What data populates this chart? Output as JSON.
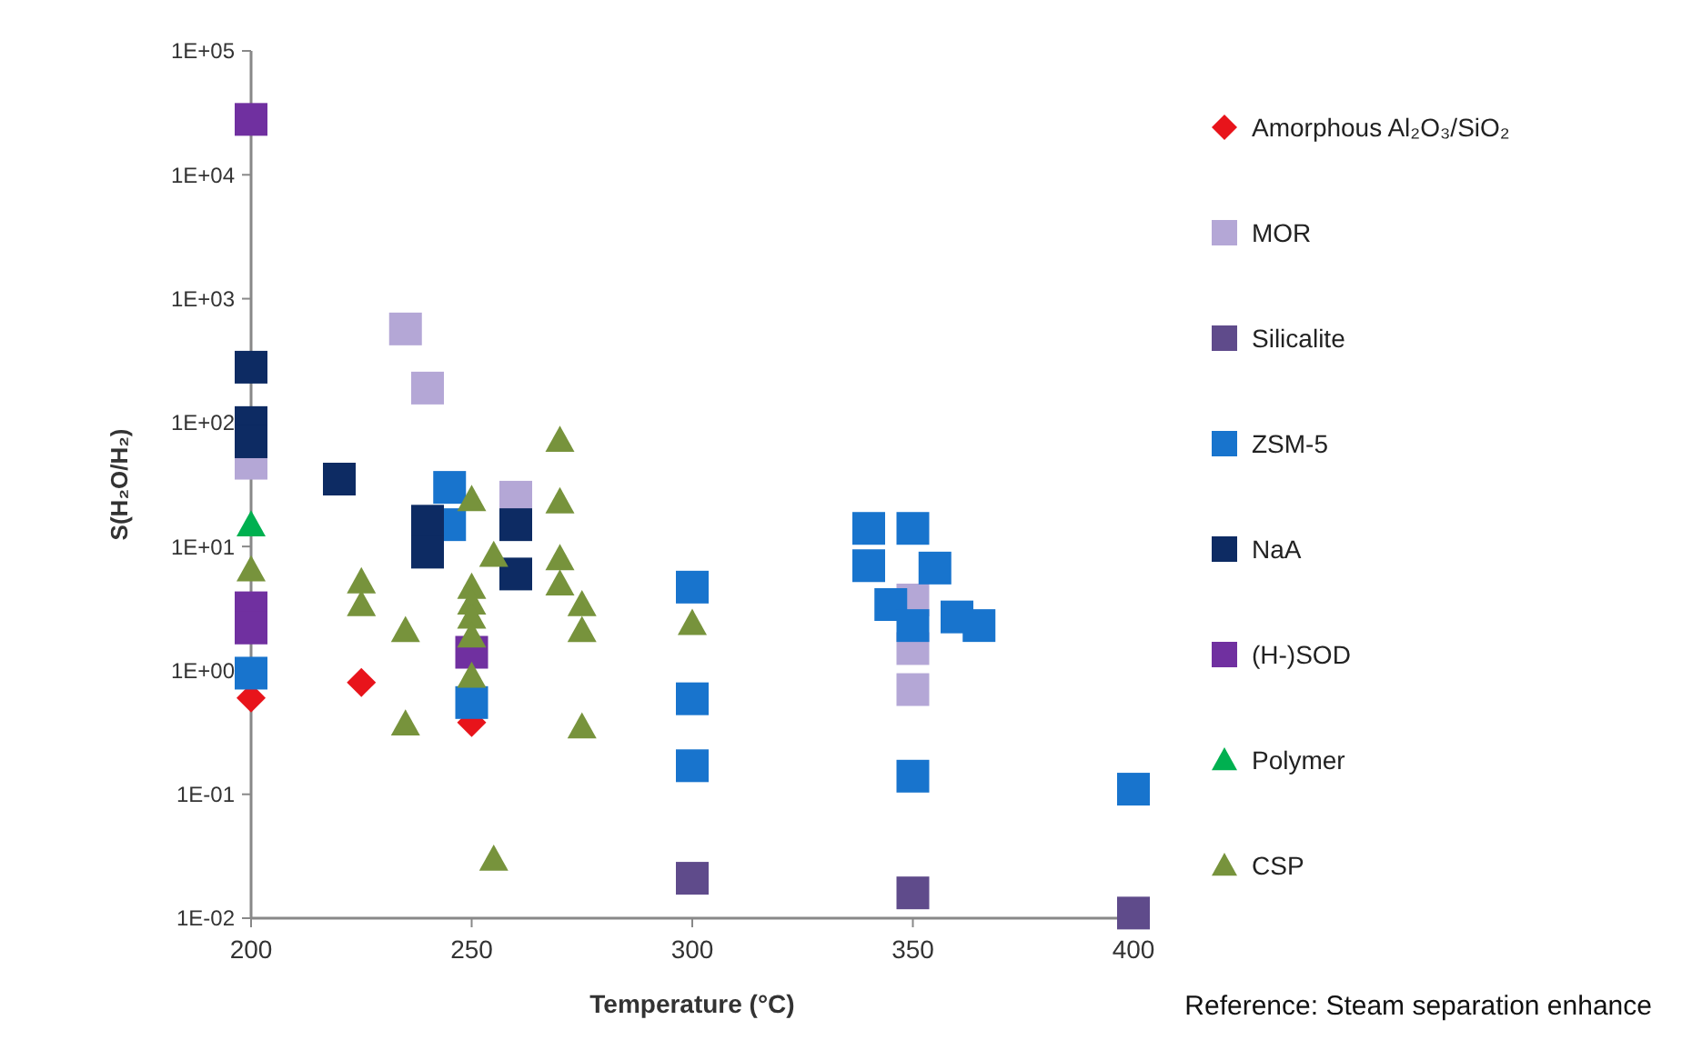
{
  "chart_data": {
    "type": "scatter",
    "xlabel": "Temperature (°C)",
    "ylabel": "S(H₂O/H₂)",
    "log": "y",
    "legend": "right",
    "grid": false,
    "xlim": [
      200,
      400
    ],
    "xticks": [
      200,
      250,
      300,
      350,
      400
    ],
    "ylim": [
      0.01,
      100000
    ],
    "yticks": [
      {
        "value": 0.01,
        "label": "1E-02"
      },
      {
        "value": 0.1,
        "label": "1E-01"
      },
      {
        "value": 1,
        "label": "1E+00"
      },
      {
        "value": 10,
        "label": "1E+01"
      },
      {
        "value": 100,
        "label": "1E+02"
      },
      {
        "value": 1000,
        "label": "1E+03"
      },
      {
        "value": 10000,
        "label": "1E+04"
      },
      {
        "value": 100000,
        "label": "1E+05"
      }
    ],
    "series": [
      {
        "name": "Amorphous Al₂O₃/SiO₂",
        "color": "#e8141b",
        "marker": "diamond",
        "x": [
          200,
          225,
          250
        ],
        "values": [
          0.6,
          0.8,
          0.38
        ]
      },
      {
        "name": "MOR",
        "color": "#b4a7d6",
        "marker": "square",
        "x": [
          200,
          235,
          240,
          260,
          350,
          350,
          350
        ],
        "values": [
          47,
          570,
          190,
          25,
          3.7,
          1.5,
          0.7
        ]
      },
      {
        "name": "Silicalite",
        "color": "#5f4b8b",
        "marker": "square",
        "x": [
          300,
          350,
          400
        ],
        "values": [
          0.021,
          0.016,
          0.011
        ]
      },
      {
        "name": "ZSM-5",
        "color": "#1874cd",
        "marker": "square",
        "x": [
          200,
          245,
          245,
          250,
          300,
          300,
          300,
          340,
          340,
          345,
          350,
          355,
          350,
          360,
          365,
          350,
          400
        ],
        "values": [
          0.95,
          30,
          15,
          0.55,
          4.7,
          0.59,
          0.17,
          14,
          7,
          3.4,
          14,
          6.7,
          2.3,
          2.7,
          2.3,
          0.14,
          0.11
        ]
      },
      {
        "name": "NaA",
        "color": "#0d2b63",
        "marker": "square",
        "x": [
          200,
          200,
          200,
          220,
          240,
          240,
          260,
          260
        ],
        "values": [
          280,
          100,
          70,
          35,
          16,
          9,
          15,
          6
        ]
      },
      {
        "name": "(H-)SOD",
        "color": "#7030a0",
        "marker": "square",
        "x": [
          200,
          200,
          200,
          250
        ],
        "values": [
          28000,
          3.2,
          2.2,
          1.4
        ]
      },
      {
        "name": "Polymer",
        "color": "#00b050",
        "marker": "triangle",
        "x": [
          200
        ],
        "values": [
          15
        ]
      },
      {
        "name": "CSP",
        "color": "#77933c",
        "marker": "triangle",
        "x": [
          200,
          225,
          225,
          235,
          235,
          250,
          250,
          250,
          250,
          250,
          250,
          255,
          255,
          270,
          270,
          270,
          270,
          275,
          275,
          275,
          300
        ],
        "values": [
          6.5,
          5.2,
          3.4,
          2.1,
          0.37,
          24,
          4.7,
          3.5,
          2.7,
          1.9,
          0.9,
          8.5,
          0.03,
          72,
          23,
          8,
          5,
          3.4,
          2.1,
          0.35,
          2.4
        ]
      }
    ],
    "annotations": [
      "Reference: Steam separation enhance"
    ]
  }
}
